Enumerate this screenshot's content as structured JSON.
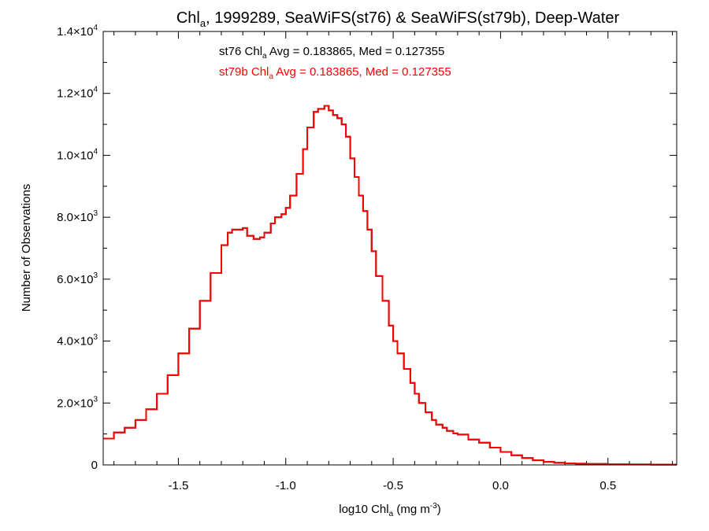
{
  "chart_data": {
    "type": "line",
    "step": true,
    "title_parts": {
      "main": "Chl",
      "sub": "a",
      "rest": ", 1999289, SeaWiFS(st76) & SeaWiFS(st79b), Deep-Water"
    },
    "xlabel_parts": {
      "main": "log10 Chl",
      "sub": "a",
      "rest": " (mg m",
      "sup": "-3",
      "end": ")"
    },
    "ylabel": "Number of Observations",
    "xlim": [
      -1.85,
      0.82
    ],
    "ylim": [
      0,
      14000
    ],
    "xticks": [
      {
        "value": -1.5,
        "label": "-1.5"
      },
      {
        "value": -1.0,
        "label": "-1.0"
      },
      {
        "value": -0.5,
        "label": "-0.5"
      },
      {
        "value": 0.0,
        "label": "0.0"
      },
      {
        "value": 0.5,
        "label": "0.5"
      }
    ],
    "x_minor_step": 0.1,
    "yticks": [
      {
        "value": 0,
        "mant": "0",
        "exp": ""
      },
      {
        "value": 2000,
        "mant": "2.0×10",
        "exp": "3"
      },
      {
        "value": 4000,
        "mant": "4.0×10",
        "exp": "3"
      },
      {
        "value": 6000,
        "mant": "6.0×10",
        "exp": "3"
      },
      {
        "value": 8000,
        "mant": "8.0×10",
        "exp": "3"
      },
      {
        "value": 10000,
        "mant": "1.0×10",
        "exp": "4"
      },
      {
        "value": 12000,
        "mant": "1.2×10",
        "exp": "4"
      },
      {
        "value": 14000,
        "mant": "1.4×10",
        "exp": "4"
      }
    ],
    "y_minor_step": 1000,
    "annotations": [
      {
        "series": "st76",
        "color": "#000000",
        "prefix": "st76 Chl",
        "sub": "a",
        "rest": " Avg = 0.183865, Med = 0.127355"
      },
      {
        "series": "st79b",
        "color": "#ff0000",
        "prefix": "st79b Chl",
        "sub": "a",
        "rest": " Avg = 0.183865, Med = 0.127355"
      }
    ],
    "series": [
      {
        "name": "st76",
        "color": "#000000"
      },
      {
        "name": "st79b",
        "color": "#ff0000"
      }
    ],
    "x": [
      -1.85,
      -1.8,
      -1.75,
      -1.7,
      -1.65,
      -1.6,
      -1.55,
      -1.5,
      -1.45,
      -1.4,
      -1.35,
      -1.3,
      -1.27,
      -1.25,
      -1.22,
      -1.2,
      -1.18,
      -1.15,
      -1.12,
      -1.1,
      -1.07,
      -1.05,
      -1.02,
      -1.0,
      -0.98,
      -0.95,
      -0.92,
      -0.9,
      -0.87,
      -0.85,
      -0.82,
      -0.8,
      -0.78,
      -0.76,
      -0.74,
      -0.72,
      -0.7,
      -0.68,
      -0.66,
      -0.64,
      -0.62,
      -0.6,
      -0.58,
      -0.55,
      -0.52,
      -0.5,
      -0.48,
      -0.45,
      -0.42,
      -0.4,
      -0.38,
      -0.35,
      -0.32,
      -0.3,
      -0.27,
      -0.25,
      -0.22,
      -0.2,
      -0.15,
      -0.1,
      -0.05,
      0.0,
      0.05,
      0.1,
      0.15,
      0.2,
      0.25,
      0.3,
      0.35,
      0.4,
      0.5,
      0.6,
      0.7,
      0.82
    ],
    "y": [
      850,
      1050,
      1200,
      1450,
      1800,
      2300,
      2900,
      3600,
      4400,
      5300,
      6200,
      7100,
      7500,
      7600,
      7600,
      7650,
      7400,
      7300,
      7350,
      7500,
      7800,
      8000,
      8100,
      8300,
      8700,
      9400,
      10200,
      10900,
      11400,
      11500,
      11600,
      11450,
      11300,
      11200,
      11000,
      10600,
      9900,
      9300,
      8700,
      8200,
      7600,
      6900,
      6100,
      5300,
      4500,
      4000,
      3600,
      3100,
      2650,
      2300,
      2000,
      1700,
      1450,
      1300,
      1200,
      1100,
      1020,
      980,
      820,
      720,
      560,
      420,
      310,
      220,
      150,
      100,
      70,
      50,
      40,
      30,
      20,
      15,
      10,
      10
    ]
  }
}
